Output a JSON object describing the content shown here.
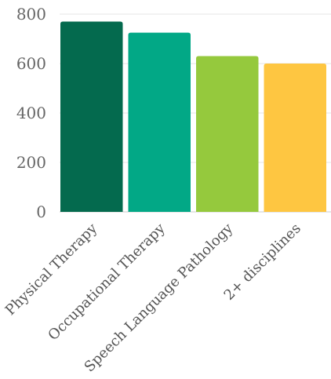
{
  "chart_data": {
    "type": "bar",
    "categories": [
      "Physical Therapy",
      "Occupational Therapy",
      "Speech Language Pathology",
      "2+ disciplines"
    ],
    "values": [
      770,
      725,
      630,
      600
    ],
    "colors": [
      "#046a4e",
      "#02a886",
      "#95c93d",
      "#fec641"
    ],
    "title": "",
    "xlabel": "",
    "ylabel": "",
    "ylim": [
      0,
      800
    ],
    "yticks": [
      "0",
      "200",
      "400",
      "600",
      "800"
    ],
    "grid": true,
    "legend": "none"
  }
}
